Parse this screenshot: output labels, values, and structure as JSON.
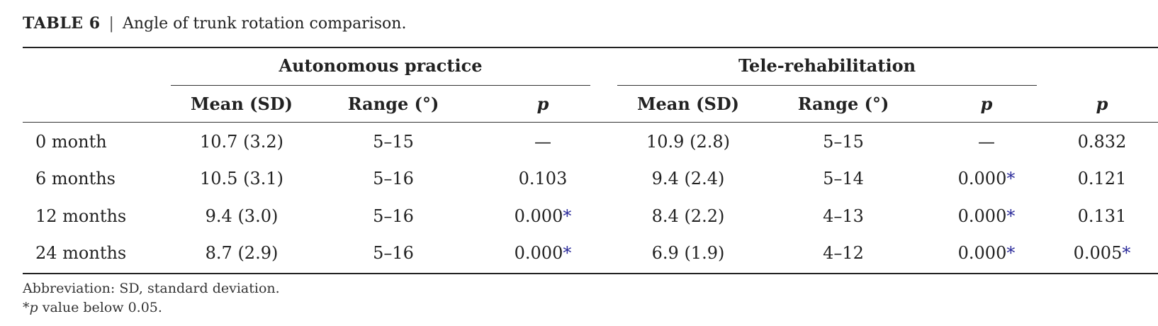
{
  "caption": {
    "label": "TABLE 6",
    "separator": "|",
    "title": "Angle of trunk rotation comparison."
  },
  "groups": {
    "autonomous": "Autonomous practice",
    "tele": "Tele-rehabilitation"
  },
  "columns": {
    "mean": "Mean (SD)",
    "range": "Range (°)",
    "p": "p"
  },
  "rows": [
    {
      "label": "0 month",
      "a_mean": "10.7 (3.2)",
      "a_range": "5–15",
      "a_p": "—",
      "a_star": "",
      "t_mean": "10.9 (2.8)",
      "t_range": "5–15",
      "t_p": "—",
      "t_star": "",
      "p": "0.832",
      "p_star": ""
    },
    {
      "label": "6 months",
      "a_mean": "10.5 (3.1)",
      "a_range": "5–16",
      "a_p": "0.103",
      "a_star": "",
      "t_mean": "9.4 (2.4)",
      "t_range": "5–14",
      "t_p": "0.000",
      "t_star": "*",
      "p": "0.121",
      "p_star": ""
    },
    {
      "label": "12 months",
      "a_mean": "9.4 (3.0)",
      "a_range": "5–16",
      "a_p": "0.000",
      "a_star": "*",
      "t_mean": "8.4 (2.2)",
      "t_range": "4–13",
      "t_p": "0.000",
      "t_star": "*",
      "p": "0.131",
      "p_star": ""
    },
    {
      "label": "24 months",
      "a_mean": "8.7 (2.9)",
      "a_range": "5–16",
      "a_p": "0.000",
      "a_star": "*",
      "t_mean": "6.9 (1.9)",
      "t_range": "4–12",
      "t_p": "0.000",
      "t_star": "*",
      "p": "0.005",
      "p_star": "*"
    }
  ],
  "footnotes": {
    "abbreviation": "Abbreviation: SD, standard deviation.",
    "star": "*",
    "p": "p",
    "star_text": " value below 0.05."
  }
}
